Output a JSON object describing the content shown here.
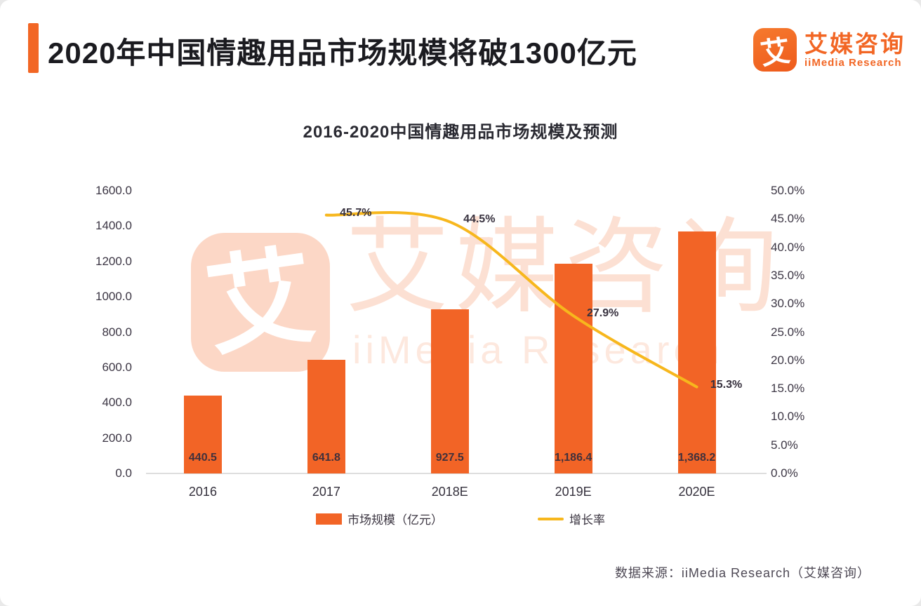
{
  "header": {
    "title": "2020年中国情趣用品市场规模将破1300亿元",
    "logo": {
      "glyph": "艾",
      "name_cn": "艾媒咨询",
      "name_en": "iiMedia Research"
    }
  },
  "chart_data": {
    "type": "bar+line combo",
    "title": "2016-2020中国情趣用品市场规模及预测",
    "categories": [
      "2016",
      "2017",
      "2018E",
      "2019E",
      "2020E"
    ],
    "series": [
      {
        "name": "市场规模（亿元）",
        "type": "bar",
        "axis": "left",
        "values": [
          440.5,
          641.8,
          927.5,
          1186.4,
          1368.2
        ],
        "labels": [
          "440.5",
          "641.8",
          "927.5",
          "1,186.4",
          "1,368.2"
        ],
        "color": "#F26426"
      },
      {
        "name": "增长率",
        "type": "line",
        "axis": "right",
        "values": [
          null,
          45.7,
          44.5,
          27.9,
          15.3
        ],
        "labels": [
          "45.7%",
          "44.5%",
          "27.9%",
          "15.3%"
        ],
        "color": "#F7B71D"
      }
    ],
    "axes": {
      "left": {
        "min": 0,
        "max": 1600,
        "ticks": [
          "0.0",
          "200.0",
          "400.0",
          "600.0",
          "800.0",
          "1000.0",
          "1200.0",
          "1400.0",
          "1600.0"
        ]
      },
      "right": {
        "min": 0,
        "max": 50,
        "ticks": [
          "0.0%",
          "5.0%",
          "10.0%",
          "15.0%",
          "20.0%",
          "25.0%",
          "30.0%",
          "35.0%",
          "40.0%",
          "45.0%",
          "50.0%"
        ]
      }
    },
    "grid": false,
    "legend_position": "bottom"
  },
  "watermark": {
    "glyph": "艾",
    "text_cn": "艾媒咨询",
    "text_en": "iiMedia Research"
  },
  "source": "数据来源：iiMedia Research（艾媒咨询）",
  "colors": {
    "brand_orange": "#F26624",
    "bar_orange": "#F26426",
    "line_yellow": "#F7B71D",
    "title_text": "#1b1b20",
    "axis_text": "#3b3543"
  }
}
